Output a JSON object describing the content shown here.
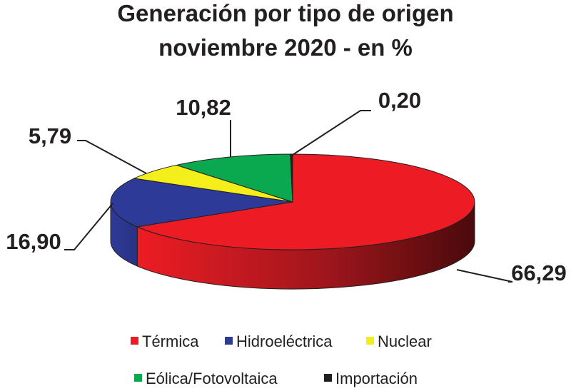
{
  "chart_data": {
    "type": "pie3d",
    "title": [
      "Generación por tipo de origen",
      "noviembre 2020 - en %"
    ],
    "categories": [
      "Térmica",
      "Hidroeléctrica",
      "Nuclear",
      "Eólica/Fotovoltaica",
      "Importación"
    ],
    "values": [
      66.29,
      16.9,
      5.79,
      10.82,
      0.2
    ],
    "value_labels": [
      "66,29",
      "16,90",
      "5,79",
      "10,82",
      "0,20"
    ],
    "colors": [
      "#ed1c24",
      "#2e3a97",
      "#f4ef1b",
      "#0aa84f",
      "#231f20"
    ]
  }
}
